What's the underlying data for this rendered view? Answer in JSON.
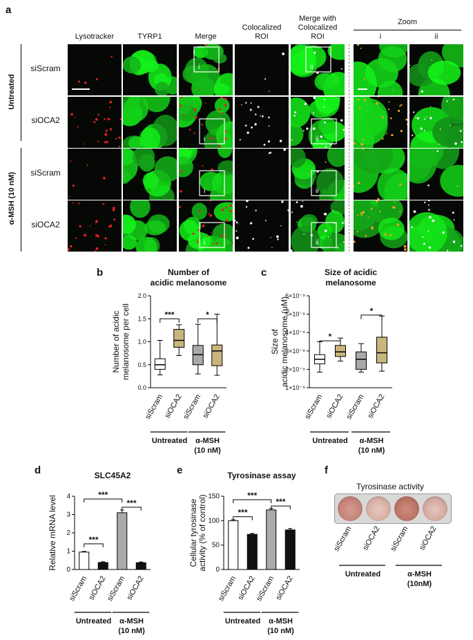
{
  "figure": {
    "panel_labels": [
      "a",
      "b",
      "c",
      "d",
      "e",
      "f"
    ],
    "panel_a": {
      "columns": [
        "Lysotracker",
        "TYRP1",
        "Merge",
        "Colocalized\nROI",
        "Merge with\nColocalized\nROI"
      ],
      "zoom_title": "Zoom",
      "zoom_cols": [
        "i",
        "ii"
      ],
      "rows": [
        "siScram",
        "siOCA2",
        "siScram",
        "siOCA2"
      ],
      "groups": [
        "Untreated",
        "α-MSH (10 nM)"
      ],
      "roi_labels": [
        "i",
        "ii"
      ]
    },
    "group_labels": {
      "untreated": "Untreated",
      "msh_line1": "α-MSH",
      "msh_line2": "(10 nM)",
      "msh_line2_f": "(10nM)"
    },
    "panel_f": {
      "title": "Tyrosinase activity",
      "categories": [
        "siScram",
        "siOCA2",
        "siScram",
        "siOCA2"
      ]
    }
  },
  "chart_data": [
    {
      "id": "b",
      "type": "box",
      "title": "Number of acidic melanosome",
      "title_lines": [
        "Number of",
        "acidic melanosome"
      ],
      "ylabel_lines": [
        "Number of acidic",
        "melanosome per cell"
      ],
      "categories": [
        "siScram",
        "siOCA2",
        "siScram",
        "siOCA2"
      ],
      "yticks": [
        "0.0",
        "0.5",
        "1.0",
        "1.5",
        "2.0"
      ],
      "ylim": [
        0,
        2.0
      ],
      "boxes": [
        {
          "min": 0.28,
          "q1": 0.4,
          "median": 0.5,
          "q3": 0.63,
          "max": 1.03,
          "color": "#ffffff"
        },
        {
          "min": 0.7,
          "q1": 0.88,
          "median": 1.03,
          "q3": 1.27,
          "max": 1.37,
          "color": "#c9b57e"
        },
        {
          "min": 0.3,
          "q1": 0.5,
          "median": 0.72,
          "q3": 0.92,
          "max": 1.38,
          "color": "#a9a9a9"
        },
        {
          "min": 0.27,
          "q1": 0.48,
          "median": 0.8,
          "q3": 0.93,
          "max": 1.6,
          "color": "#c9b57e"
        }
      ],
      "significance": [
        {
          "from": 0,
          "to": 1,
          "label": "***",
          "y": 1.5
        },
        {
          "from": 2,
          "to": 3,
          "label": "*",
          "y": 1.5
        }
      ]
    },
    {
      "id": "c",
      "type": "box",
      "title": "Size of acidic melanosome",
      "title_lines": [
        "Size of acidic",
        "melanosome"
      ],
      "ylabel_lines": [
        "Size of",
        "acidic melanosome (μM)"
      ],
      "categories": [
        "siScram",
        "siOCA2",
        "siScram",
        "siOCA2"
      ],
      "yticks": [
        "1×10⁻⁹",
        "2×10⁻⁹",
        "3×10⁻⁹",
        "4×10⁻⁹",
        "5×10⁻⁹",
        "6×10⁻⁹"
      ],
      "ylim": [
        1,
        6
      ],
      "y_unit_multiplier": "1e-9",
      "boxes": [
        {
          "min": 1.85,
          "q1": 2.3,
          "median": 2.55,
          "q3": 2.8,
          "max": 3.5,
          "color": "#ffffff"
        },
        {
          "min": 2.45,
          "q1": 2.7,
          "median": 2.95,
          "q3": 3.3,
          "max": 3.7,
          "color": "#c9b57e"
        },
        {
          "min": 1.85,
          "q1": 2.0,
          "median": 2.55,
          "q3": 2.95,
          "max": 3.4,
          "color": "#a9a9a9"
        },
        {
          "min": 1.9,
          "q1": 2.35,
          "median": 2.9,
          "q3": 3.75,
          "max": 4.9,
          "color": "#c9b57e"
        }
      ],
      "significance": [
        {
          "from": 0,
          "to": 1,
          "label": "*",
          "y": 3.55
        },
        {
          "from": 2,
          "to": 3,
          "label": "*",
          "y": 4.95
        }
      ]
    },
    {
      "id": "d",
      "type": "bar",
      "title": "SLC45A2",
      "ylabel": "Relative mRNA level",
      "categories": [
        "siScram",
        "siOCA2",
        "siScram",
        "siOCA2"
      ],
      "values": [
        0.95,
        0.38,
        3.1,
        0.37
      ],
      "errors": [
        0.04,
        0.04,
        0.15,
        0.04
      ],
      "colors": [
        "#ffffff",
        "#111111",
        "#aaaaaa",
        "#111111"
      ],
      "yticks": [
        "0",
        "1",
        "2",
        "3",
        "4"
      ],
      "ylim": [
        0,
        4
      ],
      "significance": [
        {
          "from": 0,
          "to": 1,
          "label": "***",
          "y": 1.4
        },
        {
          "from": 2,
          "to": 3,
          "label": "***",
          "y": 3.4
        },
        {
          "from": 0,
          "to": 2,
          "label": "***",
          "y": 3.85
        }
      ]
    },
    {
      "id": "e",
      "type": "bar",
      "title": "Tyrosinase assay",
      "ylabel_lines": [
        "Cellular tyrosinase",
        "activity (% of control)"
      ],
      "categories": [
        "siScram",
        "siOCA2",
        "siScram",
        "siOCA2"
      ],
      "values": [
        100,
        72,
        122,
        81
      ],
      "errors": [
        2,
        2,
        3,
        3
      ],
      "colors": [
        "#ffffff",
        "#111111",
        "#aaaaaa",
        "#111111"
      ],
      "yticks": [
        "0",
        "50",
        "100",
        "150"
      ],
      "ylim": [
        0,
        150
      ],
      "significance": [
        {
          "from": 0,
          "to": 1,
          "label": "***",
          "y": 108
        },
        {
          "from": 2,
          "to": 3,
          "label": "***",
          "y": 130
        },
        {
          "from": 0,
          "to": 2,
          "label": "***",
          "y": 143
        }
      ]
    }
  ]
}
